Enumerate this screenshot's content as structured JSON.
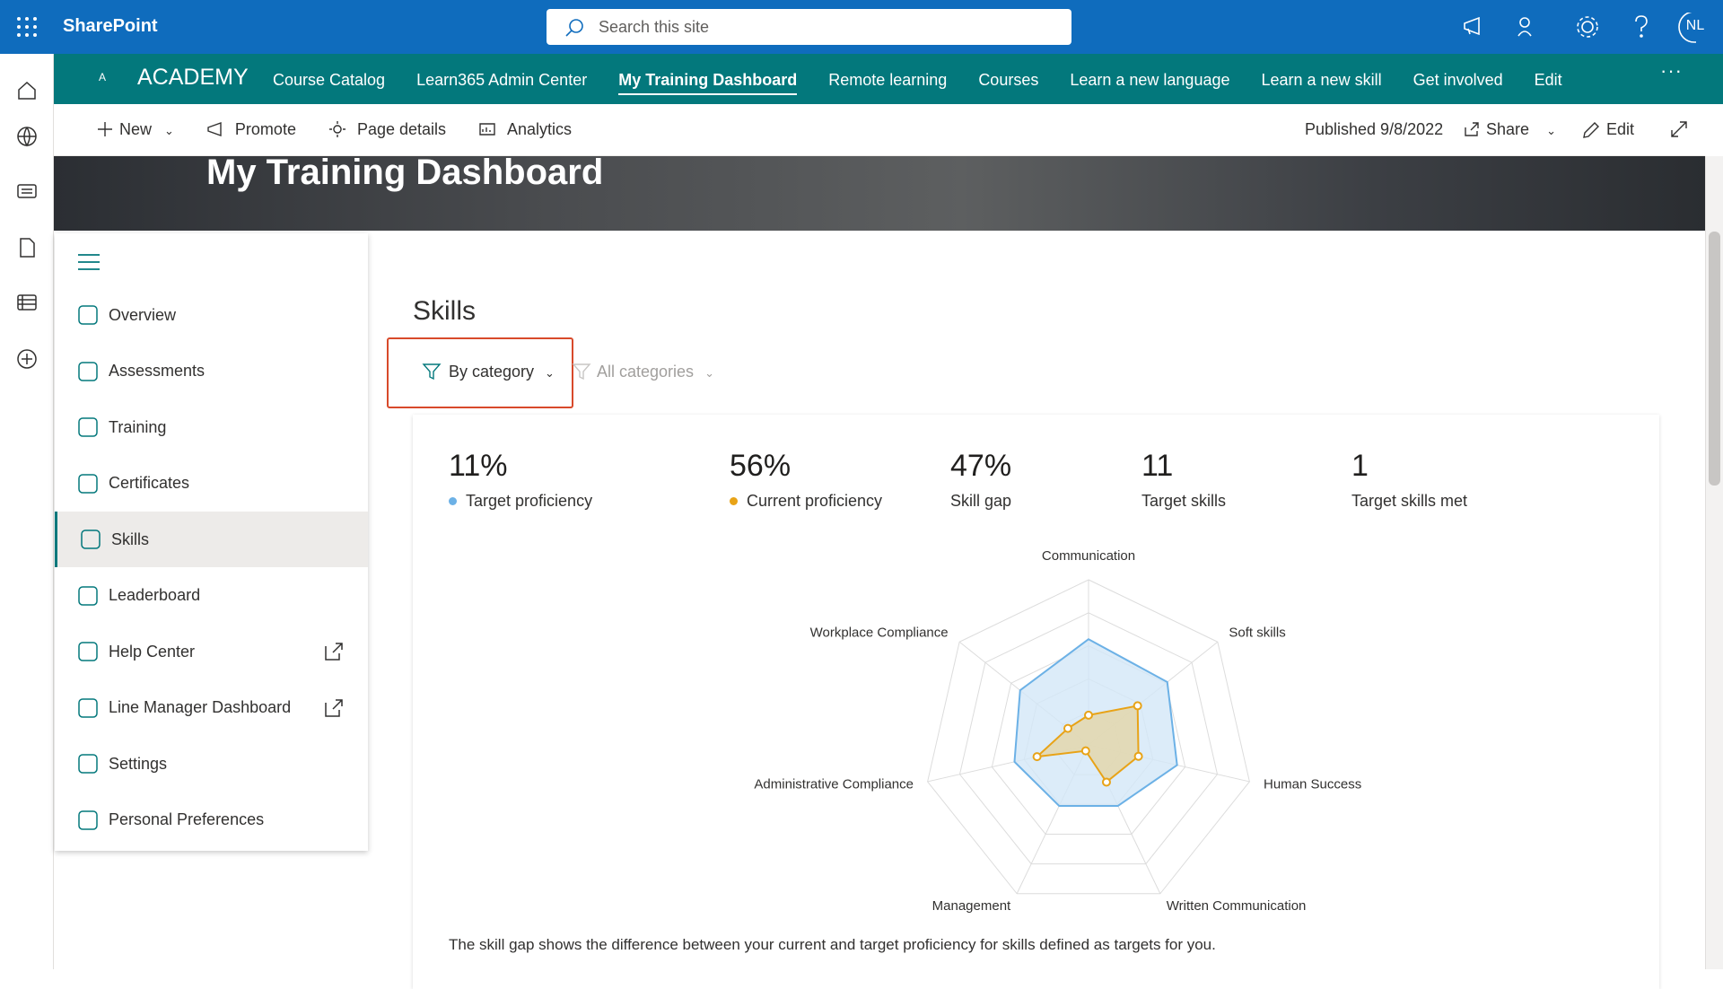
{
  "header": {
    "app": "SharePoint",
    "search_placeholder": "Search this site",
    "avatar": "NL"
  },
  "site_nav": {
    "logo": "A",
    "title": "ACADEMY",
    "items": [
      "Course Catalog",
      "Learn365 Admin Center",
      "My Training Dashboard",
      "Remote learning",
      "Courses",
      "Learn a new language",
      "Learn a new skill",
      "Get involved",
      "Edit"
    ],
    "active": 2
  },
  "command_bar": {
    "left": [
      "New",
      "Promote",
      "Page details",
      "Analytics"
    ],
    "published": "Published 9/8/2022",
    "share": "Share",
    "edit": "Edit"
  },
  "banner": {
    "title": "My Training Dashboard"
  },
  "sidebar": {
    "items": [
      {
        "label": "Overview"
      },
      {
        "label": "Assessments"
      },
      {
        "label": "Training"
      },
      {
        "label": "Certificates"
      },
      {
        "label": "Skills"
      },
      {
        "label": "Leaderboard"
      },
      {
        "label": "Help Center",
        "external": true
      },
      {
        "label": "Line Manager Dashboard",
        "external": true
      },
      {
        "label": "Settings"
      },
      {
        "label": "Personal Preferences"
      }
    ],
    "active": 4
  },
  "skills": {
    "title": "Skills",
    "filter": "By category",
    "category": "All categories",
    "summary": [
      {
        "value": "11%",
        "series": 0
      },
      {
        "value": "56%",
        "series": 1
      },
      {
        "value": "47%",
        "label": "Skill gap"
      },
      {
        "value": "11",
        "label": "Target skills"
      },
      {
        "value": "1",
        "label": "Target skills met"
      }
    ],
    "footnote": "The skill gap shows the difference between your current and target proficiency for skills defined as targets for you."
  },
  "chart_data": {
    "type": "radar",
    "categories": [
      "Communication",
      "Soft skills",
      "Human Success",
      "Written Communication",
      "Management",
      "Administrative Compliance",
      "Workplace Compliance"
    ],
    "series": [
      {
        "name": "Target proficiency",
        "color": "#6cb1e6",
        "fill": "#d3e7f8",
        "markers": false,
        "values": [
          64,
          61,
          55,
          41,
          41,
          46,
          53
        ]
      },
      {
        "name": "Current proficiency",
        "color": "#e8a317",
        "fill": "#e3d6a8",
        "markers": true,
        "values": [
          18,
          38,
          31,
          25,
          4,
          32,
          16
        ]
      }
    ],
    "rlim": [
      0,
      100
    ],
    "rings": 5,
    "grid": true
  }
}
